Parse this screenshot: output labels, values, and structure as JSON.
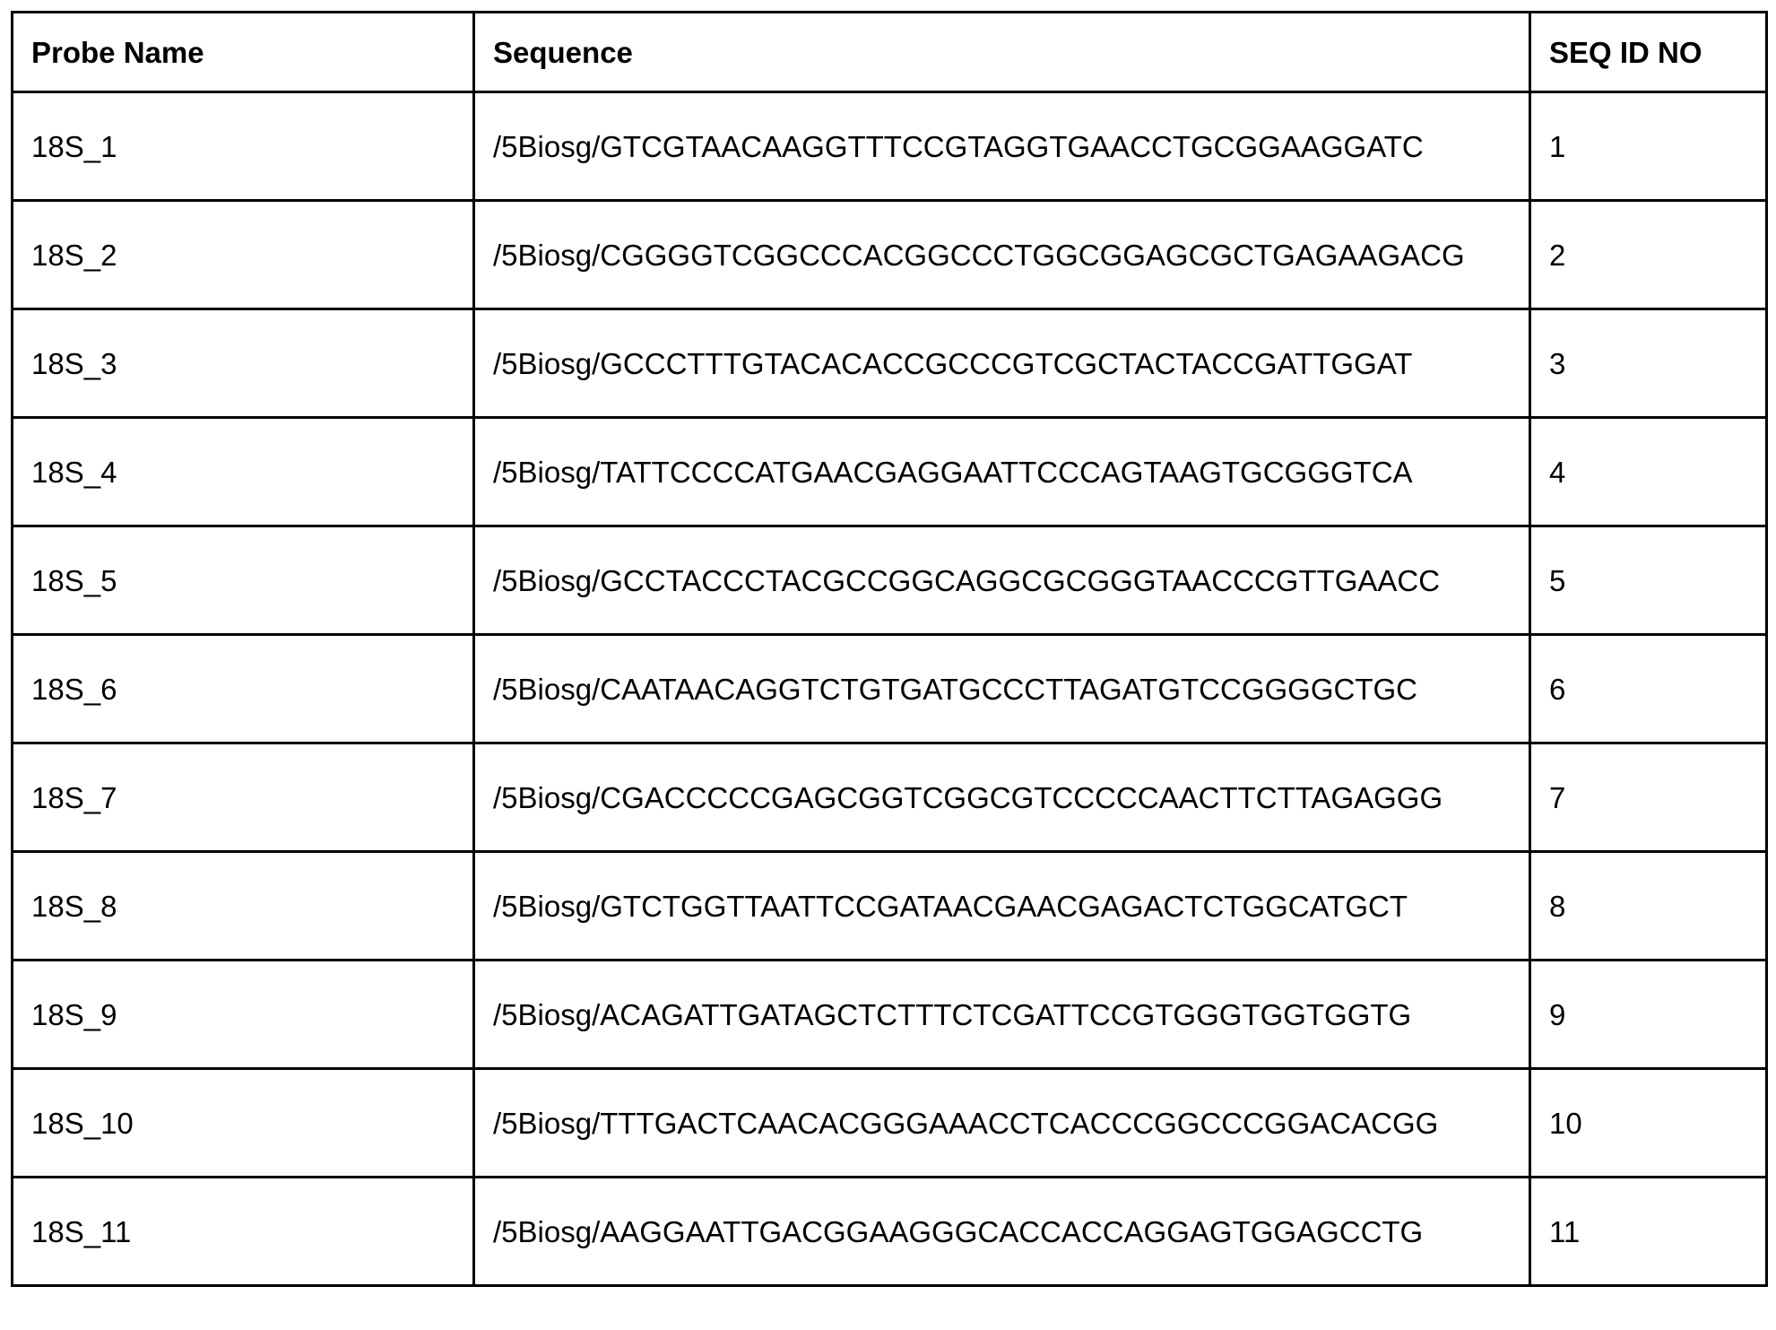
{
  "table": {
    "headers": [
      "Probe Name",
      "Sequence",
      "SEQ ID NO"
    ],
    "rows": [
      {
        "name": "18S_1",
        "sequence": "/5Biosg/GTCGTAACAAGGTTTCCGTAGGTGAACCTGCGGAAGGATC",
        "seq_id": "1"
      },
      {
        "name": "18S_2",
        "sequence": "/5Biosg/CGGGGTCGGCCCACGGCCCTGGCGGAGCGCTGAGAAGACG",
        "seq_id": "2"
      },
      {
        "name": "18S_3",
        "sequence": "/5Biosg/GCCCTTTGTACACACCGCCCGTCGCTACTACCGATTGGAT",
        "seq_id": "3"
      },
      {
        "name": "18S_4",
        "sequence": "/5Biosg/TATTCCCCATGAACGAGGAATTCCCAGTAAGTGCGGGTCA",
        "seq_id": "4"
      },
      {
        "name": "18S_5",
        "sequence": "/5Biosg/GCCTACCCTACGCCGGCAGGCGCGGGTAACCCGTTGAACC",
        "seq_id": "5"
      },
      {
        "name": "18S_6",
        "sequence": "/5Biosg/CAATAACAGGTCTGTGATGCCCTTAGATGTCCGGGGCTGC",
        "seq_id": "6"
      },
      {
        "name": "18S_7",
        "sequence": "/5Biosg/CGACCCCCGAGCGGTCGGCGTCCCCCAACTTCTTAGAGGG",
        "seq_id": "7"
      },
      {
        "name": "18S_8",
        "sequence": "/5Biosg/GTCTGGTTAATTCCGATAACGAACGAGACTCTGGCATGCT",
        "seq_id": "8"
      },
      {
        "name": "18S_9",
        "sequence": "/5Biosg/ACAGATTGATAGCTCTTTCTCGATTCCGTGGGTGGTGGTG",
        "seq_id": "9"
      },
      {
        "name": "18S_10",
        "sequence": "/5Biosg/TTTGACTCAACACGGGAAACCTCACCCGGCCCGGACACGG",
        "seq_id": "10"
      },
      {
        "name": "18S_11",
        "sequence": "/5Biosg/AAGGAATTGACGGAAGGGCACCACCAGGAGTGGAGCCTG",
        "seq_id": "11"
      }
    ]
  }
}
